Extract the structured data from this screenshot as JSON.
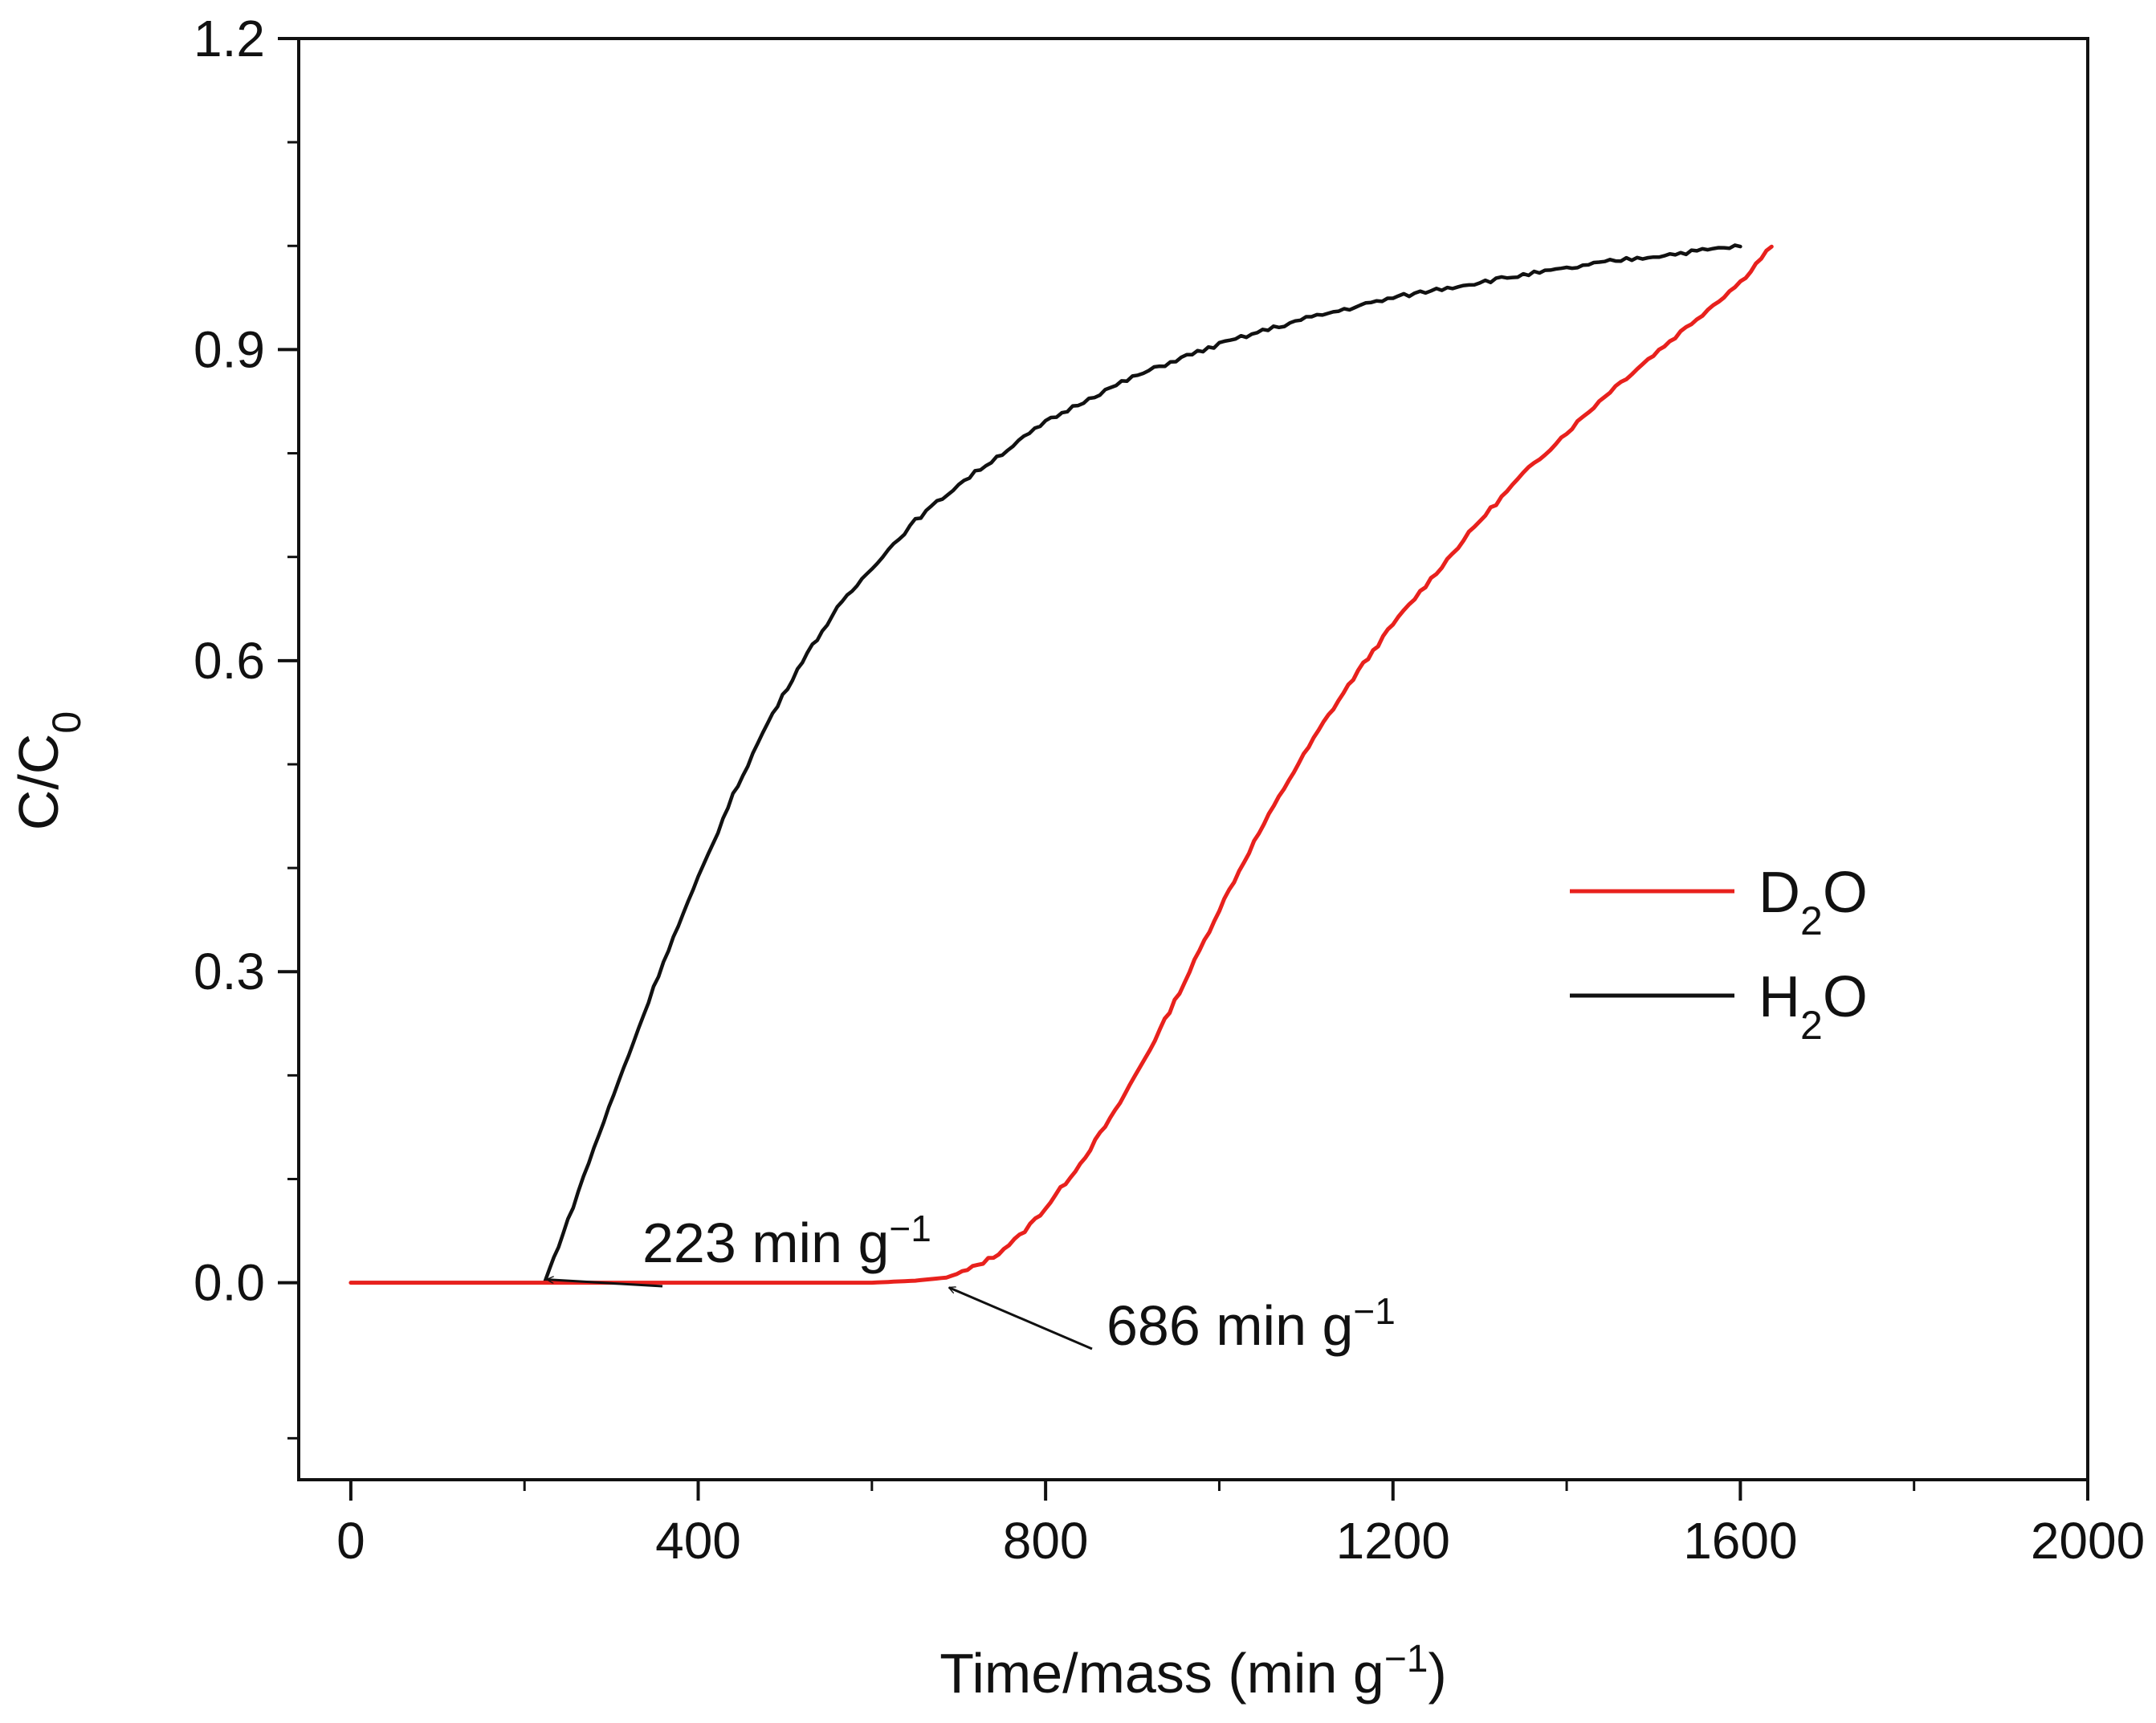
{
  "chart_data": {
    "type": "line",
    "title": "",
    "xlabel": "Time/mass (min g",
    "xlabel_sup": "−1",
    "xlabel_tail": ")",
    "ylabel_main": "C/C",
    "ylabel_sub": "0",
    "xlim": [
      -60,
      2000
    ],
    "ylim": [
      -0.19,
      1.2
    ],
    "xticks": [
      0,
      400,
      800,
      1200,
      1600,
      2000
    ],
    "xtick_labels": [
      "0",
      "400",
      "800",
      "1200",
      "1600",
      "2000"
    ],
    "yticks": [
      0.0,
      0.3,
      0.6,
      0.9,
      1.2
    ],
    "ytick_labels": [
      "0.0",
      "0.3",
      "0.6",
      "0.9",
      "1.2"
    ],
    "grid": false,
    "legend_position": "center-right",
    "series": [
      {
        "name_main": "D",
        "name_sub": "2",
        "name_tail": "O",
        "color": "#e8211d",
        "x": [
          0,
          200,
          400,
          600,
          650,
          686,
          710,
          740,
          770,
          800,
          840,
          880,
          920,
          960,
          1000,
          1040,
          1080,
          1120,
          1160,
          1200,
          1250,
          1300,
          1350,
          1400,
          1450,
          1500,
          1550,
          1600,
          1636
        ],
        "y": [
          0,
          0,
          0,
          0,
          0.002,
          0.005,
          0.012,
          0.025,
          0.045,
          0.072,
          0.115,
          0.165,
          0.225,
          0.29,
          0.36,
          0.425,
          0.485,
          0.54,
          0.59,
          0.635,
          0.685,
          0.735,
          0.78,
          0.82,
          0.86,
          0.895,
          0.93,
          0.965,
          1.0
        ]
      },
      {
        "name_main": "H",
        "name_sub": "2",
        "name_tail": "O",
        "color": "#111111",
        "x": [
          0,
          100,
          223,
          250,
          280,
          320,
          360,
          400,
          440,
          480,
          520,
          560,
          600,
          650,
          700,
          750,
          800,
          850,
          900,
          950,
          1000,
          1050,
          1100,
          1150,
          1200,
          1250,
          1300,
          1350,
          1400,
          1450,
          1500,
          1550,
          1600
        ],
        "y": [
          0,
          0,
          0,
          0.06,
          0.13,
          0.22,
          0.31,
          0.39,
          0.47,
          0.54,
          0.6,
          0.65,
          0.69,
          0.735,
          0.77,
          0.8,
          0.83,
          0.853,
          0.873,
          0.89,
          0.905,
          0.918,
          0.93,
          0.94,
          0.95,
          0.958,
          0.965,
          0.972,
          0.978,
          0.985,
          0.99,
          0.995,
          1.0
        ]
      }
    ],
    "annotations": [
      {
        "text_main": "223 min g",
        "text_sup": "−1",
        "x": 223,
        "y": 0.0,
        "color": "#111111"
      },
      {
        "text_main": "686 min g",
        "text_sup": "−1",
        "x": 686,
        "y": 0.0,
        "color": "#111111"
      }
    ]
  }
}
